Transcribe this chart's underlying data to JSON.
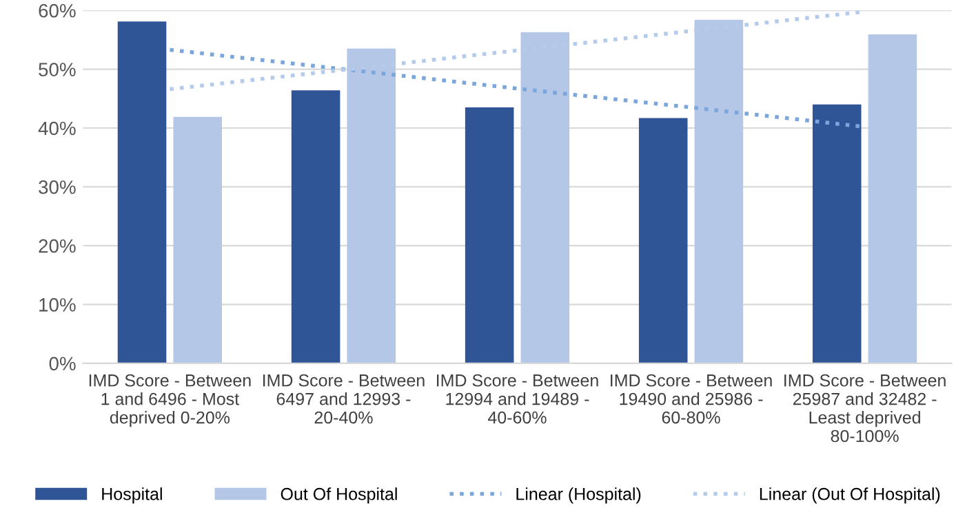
{
  "chart_data": {
    "type": "bar",
    "categories": [
      "IMD Score - Between 1 and 6496 - Most deprived 0-20%",
      "IMD Score - Between 6497 and 12993 - 20-40%",
      "IMD Score - Between 12994 and 19489 - 40-60%",
      "IMD Score - Between 19490 and 25986 - 60-80%",
      "IMD Score - Between 25987 and 32482 - Least deprived 80-100%"
    ],
    "series": [
      {
        "name": "Hospital",
        "color": "#2f5597",
        "values": [
          58.1,
          46.4,
          43.5,
          41.7,
          44.0
        ]
      },
      {
        "name": "Out Of Hospital",
        "color": "#b4c7e7",
        "values": [
          41.9,
          53.5,
          56.3,
          58.4,
          55.9
        ]
      },
      {
        "name": "Linear (Hospital)",
        "type": "line",
        "line_style": "dotted",
        "color": "#7aa6dc",
        "values": [
          53.3,
          50.0,
          46.7,
          43.5,
          40.2
        ]
      },
      {
        "name": "Linear (Out Of Hospital)",
        "type": "line",
        "line_style": "dotted",
        "color": "#b4cbeb",
        "values": [
          46.6,
          49.9,
          53.2,
          56.5,
          59.8
        ]
      }
    ],
    "ylim": [
      0,
      60
    ],
    "yticks": [
      {
        "value": 0,
        "label": "0%"
      },
      {
        "value": 10,
        "label": "10%"
      },
      {
        "value": 20,
        "label": "20%"
      },
      {
        "value": 30,
        "label": "30%"
      },
      {
        "value": 40,
        "label": "40%"
      },
      {
        "value": 50,
        "label": "50%"
      },
      {
        "value": 60,
        "label": "60%"
      }
    ],
    "grid": "y",
    "legend": "bottom"
  }
}
